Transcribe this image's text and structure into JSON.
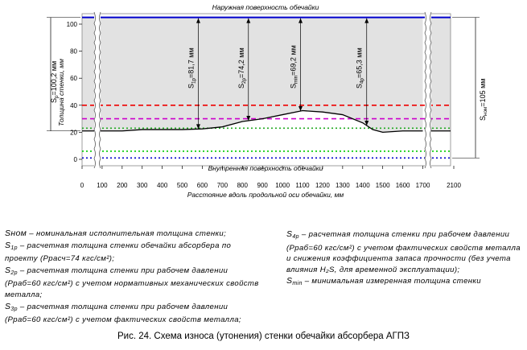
{
  "chart_data": {
    "type": "line",
    "title_top": "Наружная поверхность обечайки",
    "title_bottom": "Внутренняя поверхность обечайки",
    "xlabel": "Расстояние вдоль продольной оси обечайки, мм",
    "ylabel": "Толщина стенки, мм",
    "xlim": [
      0,
      2100
    ],
    "ylim": [
      0,
      105
    ],
    "x_ticks": [
      0,
      100,
      200,
      300,
      400,
      500,
      600,
      700,
      800,
      900,
      1000,
      1100,
      1200,
      1300,
      1400,
      1500,
      1600,
      1700,
      2100
    ],
    "y_ticks": [
      0,
      20,
      40,
      60,
      80,
      100
    ],
    "outer_surface": 105,
    "reference_lines": [
      {
        "name": "S_p",
        "value": 30,
        "color": "#cc00cc",
        "style": "dashed"
      },
      {
        "name": "S_2p",
        "value": 40,
        "color": "#ee0000",
        "style": "dashed"
      },
      {
        "name": "S_3p",
        "value": 23,
        "color": "#22aa22",
        "style": "dotted"
      },
      {
        "name": "S_4p",
        "value": 6,
        "color": "#00cc00",
        "style": "dotted"
      },
      {
        "name": "S_min",
        "value": 1,
        "color": "#0000cc",
        "style": "dotted"
      }
    ],
    "profile": {
      "name": "Измеренная толщина стенки",
      "x": [
        0,
        100,
        200,
        300,
        400,
        500,
        600,
        700,
        800,
        900,
        1000,
        1100,
        1200,
        1300,
        1400,
        1450,
        1500,
        1600,
        1700
      ],
      "y": [
        21,
        21,
        21,
        22,
        22,
        22,
        22.5,
        24,
        28,
        30,
        33,
        36,
        35,
        33,
        27,
        22,
        20,
        21,
        21
      ]
    },
    "thickness_annotations": [
      {
        "label": "S",
        "sub": "1p",
        "value_text": "=81,7 мм",
        "x": 580
      },
      {
        "label": "S",
        "sub": "2p",
        "value_text": "=74,2 мм",
        "x": 830
      },
      {
        "label": "S",
        "sub": "min",
        "value_text": "=69,2 мм",
        "x": 1090
      },
      {
        "label": "S",
        "sub": "4p",
        "value_text": "=65,3 мм",
        "x": 1420
      }
    ],
    "left_annotation": {
      "label": "S",
      "sub": "p",
      "value_text": "=100,2 мм"
    },
    "right_annotation": {
      "label": "S",
      "sub": "ном",
      "value_text": "=105 мм"
    }
  },
  "legend": {
    "left": [
      {
        "sym": "Sном",
        "sub": "",
        "text": " – номинальная исполнительная толщина стенки;"
      },
      {
        "sym": "S",
        "sub": "1p",
        "text": " – расчетная толщина стенки обечайки абсорбера по проекту (Ррасч=74 кгс/см²);"
      },
      {
        "sym": "S",
        "sub": "2p",
        "text": " – расчетная толщина стенки при рабочем давлении (Рраб=60 кгс/см²) с учетом нормативных механических свойств металла;"
      },
      {
        "sym": "S",
        "sub": "3p",
        "text": " – расчетная толщина стенки при рабочем давлении (Рраб=60 кгс/см²) с учетом фактических свойств металла;"
      }
    ],
    "right": [
      {
        "sym": "S",
        "sub": "4p",
        "text": " – расчетная толщина стенки при рабочем давлении (Рраб=60 кгс/см²) с учетом фактических свойств металла и снижения коэффициента запаса прочности (без учета влияния H₂S, для временной эксплуатации);"
      },
      {
        "sym": "S",
        "sub": "min",
        "text": " – минимальная измеренная толщина стенки"
      }
    ]
  },
  "caption": "Рис. 24. Схема износа (утонения) стенки обечайки абсорбера АГПЗ"
}
